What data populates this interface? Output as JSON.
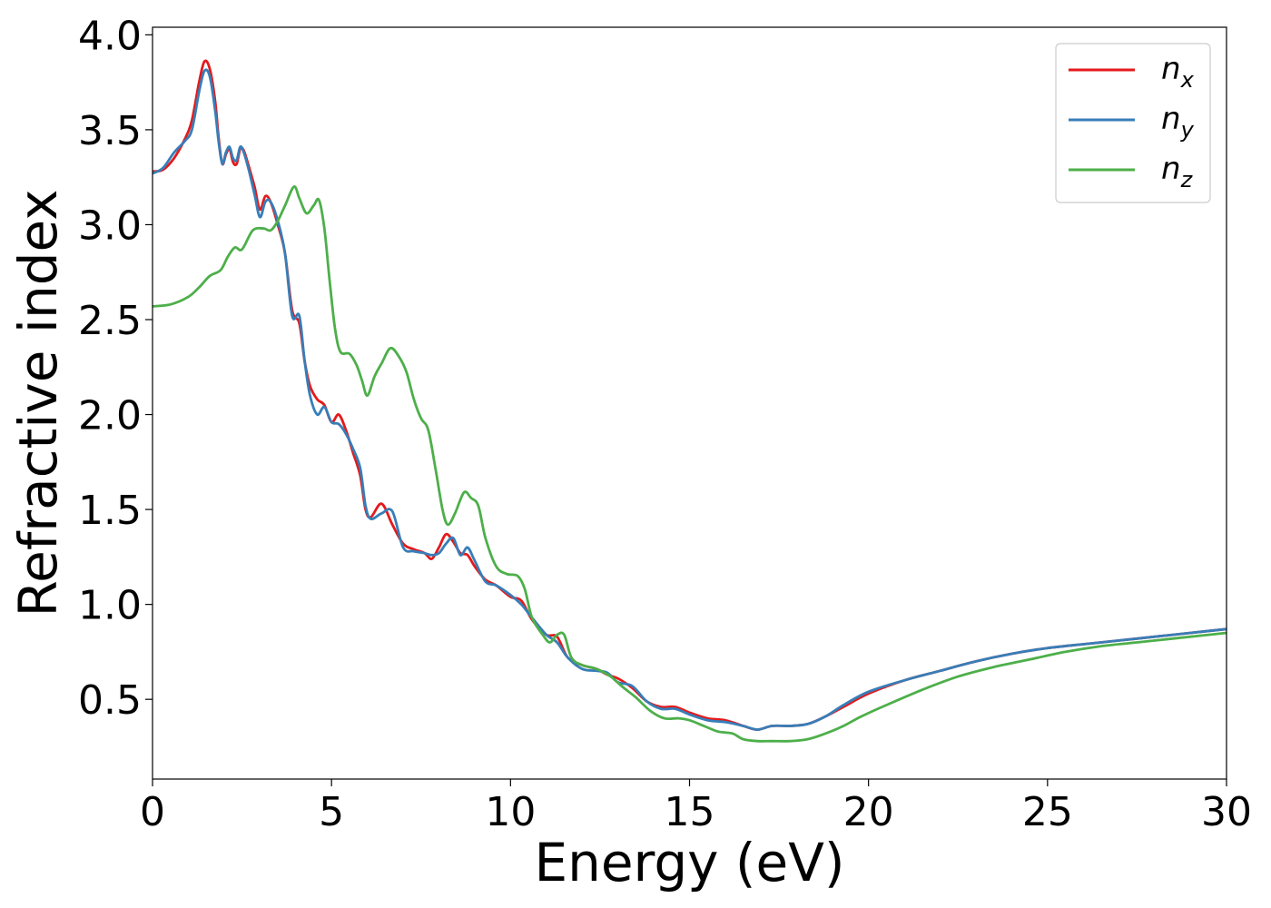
{
  "chart_data": {
    "type": "line",
    "title": "",
    "xlabel": "Energy (eV)",
    "ylabel": "Refractive index",
    "xlim": [
      0,
      30
    ],
    "ylim": [
      0.08,
      4.04
    ],
    "xticks": [
      0,
      5,
      10,
      15,
      20,
      25,
      30
    ],
    "xtick_labels": [
      "0",
      "5",
      "10",
      "15",
      "20",
      "25",
      "30"
    ],
    "yticks": [
      0.5,
      1.0,
      1.5,
      2.0,
      2.5,
      3.0,
      3.5,
      4.0
    ],
    "ytick_labels": [
      "0.5",
      "1.0",
      "1.5",
      "2.0",
      "2.5",
      "3.0",
      "3.5",
      "4.0"
    ],
    "grid": false,
    "legend_position": "top-right",
    "series": [
      {
        "name": "n_x",
        "base": "n",
        "sub": "x",
        "color": "#e41a1c",
        "points": [
          [
            0,
            3.28
          ],
          [
            0.3,
            3.29
          ],
          [
            0.6,
            3.35
          ],
          [
            0.9,
            3.45
          ],
          [
            1.1,
            3.55
          ],
          [
            1.3,
            3.75
          ],
          [
            1.45,
            3.86
          ],
          [
            1.6,
            3.82
          ],
          [
            1.75,
            3.65
          ],
          [
            1.85,
            3.45
          ],
          [
            1.95,
            3.32
          ],
          [
            2.05,
            3.37
          ],
          [
            2.15,
            3.4
          ],
          [
            2.25,
            3.33
          ],
          [
            2.35,
            3.32
          ],
          [
            2.45,
            3.4
          ],
          [
            2.55,
            3.39
          ],
          [
            2.7,
            3.3
          ],
          [
            2.85,
            3.2
          ],
          [
            3.0,
            3.08
          ],
          [
            3.15,
            3.15
          ],
          [
            3.3,
            3.12
          ],
          [
            3.5,
            3.0
          ],
          [
            3.7,
            2.85
          ],
          [
            3.9,
            2.55
          ],
          [
            4.1,
            2.48
          ],
          [
            4.25,
            2.28
          ],
          [
            4.4,
            2.15
          ],
          [
            4.6,
            2.08
          ],
          [
            4.8,
            2.05
          ],
          [
            5.0,
            1.96
          ],
          [
            5.2,
            2.0
          ],
          [
            5.4,
            1.92
          ],
          [
            5.6,
            1.8
          ],
          [
            5.8,
            1.68
          ],
          [
            5.95,
            1.5
          ],
          [
            6.1,
            1.46
          ],
          [
            6.4,
            1.53
          ],
          [
            6.7,
            1.42
          ],
          [
            7.0,
            1.32
          ],
          [
            7.3,
            1.29
          ],
          [
            7.6,
            1.27
          ],
          [
            7.8,
            1.24
          ],
          [
            8.0,
            1.3
          ],
          [
            8.2,
            1.37
          ],
          [
            8.4,
            1.33
          ],
          [
            8.6,
            1.27
          ],
          [
            8.8,
            1.26
          ],
          [
            9.0,
            1.2
          ],
          [
            9.3,
            1.13
          ],
          [
            9.6,
            1.1
          ],
          [
            10.0,
            1.04
          ],
          [
            10.3,
            1.02
          ],
          [
            10.6,
            0.92
          ],
          [
            11.0,
            0.84
          ],
          [
            11.3,
            0.83
          ],
          [
            11.6,
            0.72
          ],
          [
            12.0,
            0.68
          ],
          [
            12.4,
            0.66
          ],
          [
            12.7,
            0.63
          ],
          [
            13.0,
            0.61
          ],
          [
            13.4,
            0.56
          ],
          [
            13.8,
            0.49
          ],
          [
            14.2,
            0.46
          ],
          [
            14.6,
            0.46
          ],
          [
            15.0,
            0.43
          ],
          [
            15.5,
            0.4
          ],
          [
            16.0,
            0.39
          ],
          [
            16.5,
            0.36
          ],
          [
            16.9,
            0.34
          ],
          [
            17.3,
            0.36
          ],
          [
            17.8,
            0.36
          ],
          [
            18.3,
            0.37
          ],
          [
            18.8,
            0.41
          ],
          [
            19.3,
            0.46
          ],
          [
            20.0,
            0.53
          ],
          [
            21.0,
            0.6
          ],
          [
            22.0,
            0.65
          ],
          [
            23.0,
            0.7
          ],
          [
            24.0,
            0.74
          ],
          [
            25.0,
            0.77
          ],
          [
            26.0,
            0.79
          ],
          [
            27.0,
            0.81
          ],
          [
            28.0,
            0.83
          ],
          [
            29.0,
            0.85
          ],
          [
            30.0,
            0.87
          ]
        ]
      },
      {
        "name": "n_y",
        "base": "n",
        "sub": "y",
        "color": "#377eb8",
        "points": [
          [
            0,
            3.27
          ],
          [
            0.3,
            3.3
          ],
          [
            0.6,
            3.38
          ],
          [
            0.9,
            3.44
          ],
          [
            1.1,
            3.5
          ],
          [
            1.3,
            3.7
          ],
          [
            1.45,
            3.81
          ],
          [
            1.6,
            3.78
          ],
          [
            1.75,
            3.6
          ],
          [
            1.85,
            3.43
          ],
          [
            1.95,
            3.32
          ],
          [
            2.05,
            3.38
          ],
          [
            2.15,
            3.41
          ],
          [
            2.25,
            3.35
          ],
          [
            2.35,
            3.34
          ],
          [
            2.45,
            3.41
          ],
          [
            2.55,
            3.38
          ],
          [
            2.7,
            3.28
          ],
          [
            2.85,
            3.16
          ],
          [
            3.0,
            3.04
          ],
          [
            3.15,
            3.12
          ],
          [
            3.3,
            3.12
          ],
          [
            3.5,
            3.02
          ],
          [
            3.7,
            2.85
          ],
          [
            3.9,
            2.52
          ],
          [
            4.1,
            2.52
          ],
          [
            4.25,
            2.28
          ],
          [
            4.4,
            2.1
          ],
          [
            4.6,
            2.0
          ],
          [
            4.8,
            2.04
          ],
          [
            5.0,
            1.96
          ],
          [
            5.2,
            1.95
          ],
          [
            5.4,
            1.9
          ],
          [
            5.6,
            1.82
          ],
          [
            5.8,
            1.72
          ],
          [
            5.95,
            1.52
          ],
          [
            6.1,
            1.45
          ],
          [
            6.4,
            1.48
          ],
          [
            6.7,
            1.49
          ],
          [
            7.0,
            1.3
          ],
          [
            7.3,
            1.28
          ],
          [
            7.6,
            1.27
          ],
          [
            7.8,
            1.26
          ],
          [
            8.0,
            1.27
          ],
          [
            8.2,
            1.32
          ],
          [
            8.4,
            1.35
          ],
          [
            8.6,
            1.26
          ],
          [
            8.8,
            1.3
          ],
          [
            9.0,
            1.23
          ],
          [
            9.3,
            1.12
          ],
          [
            9.6,
            1.1
          ],
          [
            10.0,
            1.05
          ],
          [
            10.3,
            1.0
          ],
          [
            10.6,
            0.93
          ],
          [
            11.0,
            0.84
          ],
          [
            11.3,
            0.8
          ],
          [
            11.6,
            0.72
          ],
          [
            12.0,
            0.66
          ],
          [
            12.4,
            0.65
          ],
          [
            12.7,
            0.64
          ],
          [
            13.0,
            0.59
          ],
          [
            13.4,
            0.57
          ],
          [
            13.8,
            0.49
          ],
          [
            14.2,
            0.45
          ],
          [
            14.6,
            0.45
          ],
          [
            15.0,
            0.42
          ],
          [
            15.5,
            0.39
          ],
          [
            16.0,
            0.38
          ],
          [
            16.5,
            0.36
          ],
          [
            16.9,
            0.34
          ],
          [
            17.3,
            0.36
          ],
          [
            17.8,
            0.36
          ],
          [
            18.3,
            0.37
          ],
          [
            18.8,
            0.41
          ],
          [
            19.3,
            0.47
          ],
          [
            20.0,
            0.54
          ],
          [
            21.0,
            0.6
          ],
          [
            22.0,
            0.65
          ],
          [
            23.0,
            0.7
          ],
          [
            24.0,
            0.74
          ],
          [
            25.0,
            0.77
          ],
          [
            26.0,
            0.79
          ],
          [
            27.0,
            0.81
          ],
          [
            28.0,
            0.83
          ],
          [
            29.0,
            0.85
          ],
          [
            30.0,
            0.87
          ]
        ]
      },
      {
        "name": "n_z",
        "base": "n",
        "sub": "z",
        "color": "#4daf4a",
        "points": [
          [
            0,
            2.57
          ],
          [
            0.5,
            2.58
          ],
          [
            1.0,
            2.62
          ],
          [
            1.3,
            2.67
          ],
          [
            1.6,
            2.73
          ],
          [
            1.9,
            2.76
          ],
          [
            2.1,
            2.83
          ],
          [
            2.3,
            2.88
          ],
          [
            2.5,
            2.87
          ],
          [
            2.8,
            2.97
          ],
          [
            3.1,
            2.98
          ],
          [
            3.3,
            2.97
          ],
          [
            3.5,
            3.02
          ],
          [
            3.7,
            3.1
          ],
          [
            3.95,
            3.2
          ],
          [
            4.1,
            3.14
          ],
          [
            4.3,
            3.06
          ],
          [
            4.5,
            3.1
          ],
          [
            4.65,
            3.13
          ],
          [
            4.8,
            2.98
          ],
          [
            4.95,
            2.7
          ],
          [
            5.1,
            2.45
          ],
          [
            5.25,
            2.33
          ],
          [
            5.5,
            2.32
          ],
          [
            5.7,
            2.26
          ],
          [
            5.85,
            2.18
          ],
          [
            6.0,
            2.1
          ],
          [
            6.2,
            2.2
          ],
          [
            6.4,
            2.27
          ],
          [
            6.65,
            2.35
          ],
          [
            6.9,
            2.3
          ],
          [
            7.1,
            2.22
          ],
          [
            7.3,
            2.08
          ],
          [
            7.5,
            1.98
          ],
          [
            7.7,
            1.92
          ],
          [
            7.9,
            1.72
          ],
          [
            8.1,
            1.5
          ],
          [
            8.25,
            1.42
          ],
          [
            8.45,
            1.48
          ],
          [
            8.7,
            1.59
          ],
          [
            8.9,
            1.56
          ],
          [
            9.1,
            1.52
          ],
          [
            9.3,
            1.35
          ],
          [
            9.6,
            1.2
          ],
          [
            9.9,
            1.16
          ],
          [
            10.2,
            1.15
          ],
          [
            10.4,
            1.08
          ],
          [
            10.6,
            0.93
          ],
          [
            10.9,
            0.84
          ],
          [
            11.1,
            0.8
          ],
          [
            11.3,
            0.84
          ],
          [
            11.5,
            0.84
          ],
          [
            11.7,
            0.72
          ],
          [
            12.0,
            0.68
          ],
          [
            12.4,
            0.66
          ],
          [
            12.8,
            0.62
          ],
          [
            13.1,
            0.57
          ],
          [
            13.5,
            0.51
          ],
          [
            13.9,
            0.44
          ],
          [
            14.3,
            0.4
          ],
          [
            14.7,
            0.4
          ],
          [
            15.0,
            0.39
          ],
          [
            15.4,
            0.36
          ],
          [
            15.8,
            0.33
          ],
          [
            16.2,
            0.32
          ],
          [
            16.5,
            0.29
          ],
          [
            16.9,
            0.28
          ],
          [
            17.3,
            0.28
          ],
          [
            17.8,
            0.28
          ],
          [
            18.3,
            0.29
          ],
          [
            18.8,
            0.32
          ],
          [
            19.3,
            0.36
          ],
          [
            19.8,
            0.41
          ],
          [
            20.5,
            0.47
          ],
          [
            21.5,
            0.55
          ],
          [
            22.5,
            0.62
          ],
          [
            23.5,
            0.67
          ],
          [
            24.5,
            0.71
          ],
          [
            25.5,
            0.75
          ],
          [
            26.5,
            0.78
          ],
          [
            27.5,
            0.8
          ],
          [
            28.5,
            0.82
          ],
          [
            29.5,
            0.84
          ],
          [
            30.0,
            0.85
          ]
        ]
      }
    ]
  }
}
